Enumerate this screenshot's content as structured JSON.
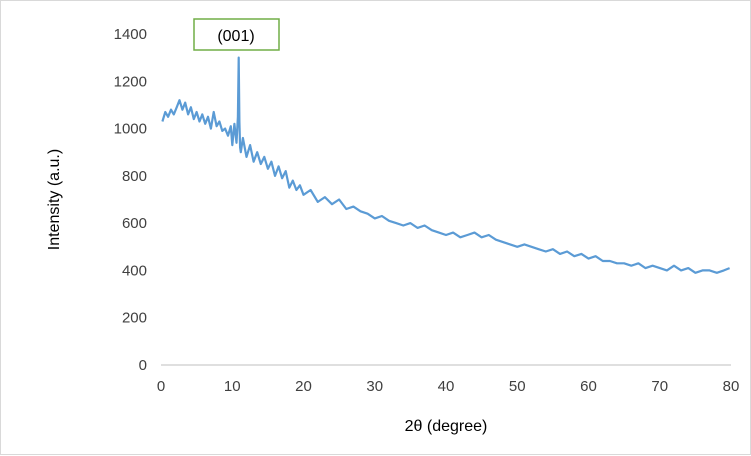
{
  "chart_data": {
    "type": "line",
    "title": "",
    "xlabel": "2θ (degree)",
    "ylabel": "Intensity (a.u.)",
    "xlim": [
      0,
      80
    ],
    "ylim": [
      0,
      1400
    ],
    "x_ticks": [
      "0",
      "10",
      "20",
      "30",
      "40",
      "50",
      "60",
      "70",
      "80"
    ],
    "y_ticks": [
      "0",
      "200",
      "400",
      "600",
      "800",
      "1000",
      "1200",
      "1400"
    ],
    "grid": false,
    "legend": "none",
    "line_color": "#5b9bd5",
    "annotation": {
      "text": "(001)",
      "border_color": "#70ad47"
    },
    "series": [
      {
        "x": [
          0.2,
          0.6,
          1.0,
          1.4,
          1.8,
          2.2,
          2.6,
          3.0,
          3.4,
          3.8,
          4.2,
          4.6,
          5.0,
          5.4,
          5.8,
          6.2,
          6.6,
          7.0,
          7.4,
          7.8,
          8.2,
          8.6,
          9.0,
          9.4,
          9.8,
          10.0,
          10.3,
          10.6,
          10.8,
          10.9,
          11.0,
          11.1,
          11.2,
          11.5,
          12.0,
          12.5,
          13.0,
          13.5,
          14.0,
          14.5,
          15.0,
          15.5,
          16.0,
          16.5,
          17.0,
          17.5,
          18.0,
          18.5,
          19.0,
          19.5,
          20.0,
          21.0,
          22.0,
          23.0,
          24.0,
          25.0,
          26.0,
          27.0,
          28.0,
          29.0,
          30.0,
          31.0,
          32.0,
          33.0,
          34.0,
          35.0,
          36.0,
          37.0,
          38.0,
          39.0,
          40.0,
          41.0,
          42.0,
          43.0,
          44.0,
          45.0,
          46.0,
          47.0,
          48.0,
          49.0,
          50.0,
          51.0,
          52.0,
          53.0,
          54.0,
          55.0,
          56.0,
          57.0,
          58.0,
          59.0,
          60.0,
          61.0,
          62.0,
          63.0,
          64.0,
          65.0,
          66.0,
          67.0,
          68.0,
          69.0,
          70.0,
          71.0,
          72.0,
          73.0,
          74.0,
          75.0,
          76.0,
          77.0,
          78.0,
          79.0,
          79.8
        ],
        "y": [
          1030,
          1070,
          1050,
          1080,
          1060,
          1090,
          1120,
          1080,
          1110,
          1060,
          1090,
          1040,
          1070,
          1030,
          1060,
          1020,
          1050,
          1000,
          1070,
          1010,
          1030,
          990,
          1000,
          970,
          1010,
          930,
          1020,
          940,
          1050,
          1300,
          1030,
          920,
          900,
          960,
          880,
          930,
          860,
          900,
          850,
          880,
          830,
          860,
          800,
          840,
          790,
          820,
          750,
          780,
          740,
          760,
          720,
          740,
          690,
          710,
          680,
          700,
          660,
          670,
          650,
          640,
          620,
          630,
          610,
          600,
          590,
          600,
          580,
          590,
          570,
          560,
          550,
          560,
          540,
          550,
          560,
          540,
          550,
          530,
          520,
          510,
          500,
          510,
          500,
          490,
          480,
          490,
          470,
          480,
          460,
          470,
          450,
          460,
          440,
          440,
          430,
          430,
          420,
          430,
          410,
          420,
          410,
          400,
          420,
          400,
          410,
          390,
          400,
          400,
          390,
          400,
          410
        ]
      }
    ]
  }
}
